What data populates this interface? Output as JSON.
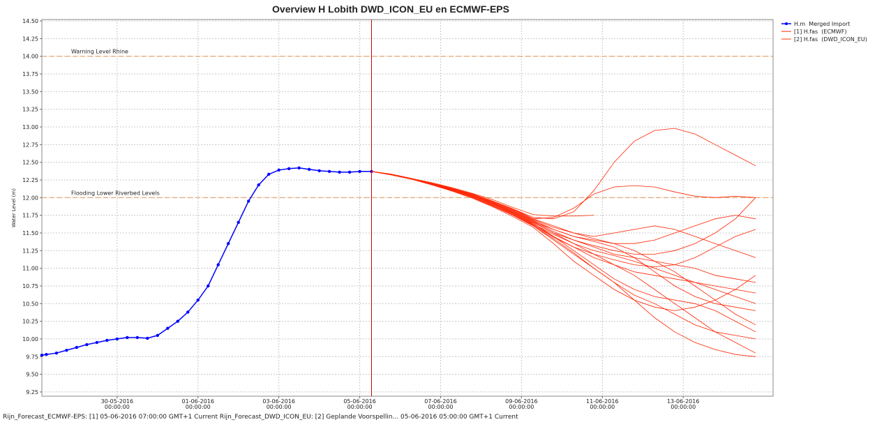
{
  "chart_data": {
    "type": "line",
    "title": "Overview H Lobith DWD_ICON_EU en ECMWF-EPS",
    "y_label": "Water Level (m)",
    "footer": "Rijn_Forecast_ECMWF-EPS: [1] 05-06-2016 07:00:00 GMT+1 Current Rijn_Forecast_DWD_ICON_EU: [2] Geplande Voorspellin... 05-06-2016 05:00:00 GMT+1 Current",
    "grid": true,
    "legend": "top-right",
    "xlim": [
      "2016-05-28T03:20",
      "2016-06-15T05:20"
    ],
    "ylim": [
      9.19,
      14.52
    ],
    "xticks": [
      {
        "value": "2016-05-30T00:00",
        "label": "30-05-2016 00:00:00"
      },
      {
        "value": "2016-06-01T00:00",
        "label": "01-06-2016 00:00:00"
      },
      {
        "value": "2016-06-03T00:00",
        "label": "03-06-2016 00:00:00"
      },
      {
        "value": "2016-06-05T00:00",
        "label": "05-06-2016 00:00:00"
      },
      {
        "value": "2016-06-07T00:00",
        "label": "07-06-2016 00:00:00"
      },
      {
        "value": "2016-06-09T00:00",
        "label": "09-06-2016 00:00:00"
      },
      {
        "value": "2016-06-11T00:00",
        "label": "11-06-2016 00:00:00"
      },
      {
        "value": "2016-06-13T00:00",
        "label": "13-06-2016 00:00:00"
      }
    ],
    "yticks": [
      9.25,
      {
        "value": 9.5,
        "label": "9.50"
      },
      9.75,
      {
        "value": 10,
        "label": "10.00"
      },
      10.25,
      {
        "value": 10.5,
        "label": "10.50"
      },
      10.75,
      {
        "value": 11,
        "label": "11.00"
      },
      11.25,
      {
        "value": 11.5,
        "label": "11.50"
      },
      11.75,
      {
        "value": 12,
        "label": "12.00"
      },
      12.25,
      {
        "value": 12.5,
        "label": "12.50"
      },
      12.75,
      {
        "value": 13,
        "label": "13.00"
      },
      13.25,
      {
        "value": 13.5,
        "label": "13.50"
      },
      13.75,
      {
        "value": 14,
        "label": "14.00"
      },
      14.25,
      {
        "value": 14.5,
        "label": "14.50"
      }
    ],
    "thresholds": [
      {
        "label": "Warning Level Rhine",
        "value": 14
      },
      {
        "label": "Flooding Lower Riverbed Levels",
        "value": 12
      }
    ],
    "threshold_color": "#e8a060",
    "series": [
      {
        "name": "H.m  Merged Import",
        "color": "#0000ff",
        "x": [
          "2016-05-28T03:20",
          "2016-05-28T06:00",
          "2016-05-28T12:00",
          "2016-05-28T18:00",
          "2016-05-29T00:00",
          "2016-05-29T06:00",
          "2016-05-29T12:00",
          "2016-05-29T18:00",
          "2016-05-30T00:00",
          "2016-05-30T06:00",
          "2016-05-30T12:00",
          "2016-05-30T18:00",
          "2016-05-31T00:00",
          "2016-05-31T06:00",
          "2016-05-31T12:00",
          "2016-05-31T18:00",
          "2016-06-01T00:00",
          "2016-06-01T06:00",
          "2016-06-01T12:00",
          "2016-06-01T18:00",
          "2016-06-02T00:00",
          "2016-06-02T06:00",
          "2016-06-02T12:00",
          "2016-06-02T18:00",
          "2016-06-03T00:00",
          "2016-06-03T06:00",
          "2016-06-03T12:00",
          "2016-06-03T18:00",
          "2016-06-04T00:00",
          "2016-06-04T06:00",
          "2016-06-04T12:00",
          "2016-06-04T18:00",
          "2016-06-05T00:00",
          "2016-06-05T07:00"
        ],
        "values": [
          9.77,
          9.78,
          9.8,
          9.84,
          9.88,
          9.92,
          9.95,
          9.98,
          10.0,
          10.02,
          10.02,
          10.01,
          10.05,
          10.15,
          10.25,
          10.38,
          10.55,
          10.75,
          11.05,
          11.35,
          11.65,
          11.95,
          12.18,
          12.33,
          12.39,
          12.41,
          12.42,
          12.4,
          12.38,
          12.37,
          12.36,
          12.36,
          12.37,
          12.37
        ]
      },
      {
        "name": "[1] H.fas  (ECMWF)",
        "color": "#ff2200",
        "x": [
          "2016-06-05T07:00",
          "2016-06-05T19:00",
          "2016-06-06T07:00",
          "2016-06-06T19:00",
          "2016-06-07T07:00",
          "2016-06-07T19:00",
          "2016-06-08T07:00",
          "2016-06-08T19:00",
          "2016-06-09T07:00",
          "2016-06-09T19:00",
          "2016-06-10T07:00",
          "2016-06-10T19:00",
          "2016-06-11T07:00",
          "2016-06-11T19:00",
          "2016-06-12T07:00",
          "2016-06-12T19:00",
          "2016-06-13T07:00",
          "2016-06-13T19:00",
          "2016-06-14T07:00",
          "2016-06-14T19:00"
        ],
        "members": [
          [
            12.37,
            12.33,
            12.27,
            12.2,
            12.13,
            12.05,
            11.95,
            11.84,
            11.72,
            11.7,
            11.8,
            12.1,
            12.5,
            12.8,
            12.95,
            12.98,
            12.9,
            12.75,
            12.6,
            12.45
          ],
          [
            12.37,
            12.33,
            12.27,
            12.2,
            12.13,
            12.05,
            11.95,
            11.84,
            11.7,
            11.72,
            11.85,
            12.05,
            12.15,
            12.17,
            12.15,
            12.08,
            12.02,
            12.0,
            12.02,
            12.0
          ],
          [
            12.37,
            12.33,
            12.26,
            12.19,
            12.11,
            12.02,
            11.91,
            11.79,
            11.65,
            11.5,
            11.35,
            11.2,
            11.05,
            10.9,
            10.7,
            10.5,
            10.3,
            10.1,
            9.95,
            9.8
          ],
          [
            12.37,
            12.32,
            12.26,
            12.18,
            12.1,
            12.0,
            11.88,
            11.75,
            11.6,
            11.4,
            11.2,
            11.0,
            10.8,
            10.55,
            10.3,
            10.1,
            9.95,
            9.85,
            9.78,
            9.75
          ],
          [
            12.37,
            12.33,
            12.27,
            12.2,
            12.12,
            12.04,
            11.93,
            11.81,
            11.68,
            11.55,
            11.45,
            11.4,
            11.35,
            11.35,
            11.4,
            11.5,
            11.6,
            11.7,
            11.75,
            11.7
          ],
          [
            12.37,
            12.33,
            12.26,
            12.19,
            12.11,
            12.02,
            11.9,
            11.77,
            11.62,
            11.45,
            11.3,
            11.15,
            11.05,
            10.95,
            10.9,
            10.85,
            10.8,
            10.7,
            10.6,
            10.5
          ],
          [
            12.37,
            12.33,
            12.27,
            12.2,
            12.12,
            12.03,
            11.92,
            11.8,
            11.66,
            11.5,
            11.4,
            11.3,
            11.2,
            11.15,
            11.1,
            11.05,
            11.0,
            10.9,
            10.85,
            10.8
          ],
          [
            12.37,
            12.32,
            12.26,
            12.18,
            12.09,
            11.99,
            11.87,
            11.73,
            11.58,
            11.35,
            11.1,
            10.9,
            10.7,
            10.55,
            10.45,
            10.4,
            10.45,
            10.55,
            10.7,
            10.9
          ],
          [
            12.37,
            12.33,
            12.27,
            12.2,
            12.13,
            12.05,
            11.95,
            11.83,
            11.7,
            11.6,
            11.5,
            11.45,
            11.5,
            11.55,
            11.6,
            11.55,
            11.45,
            11.35,
            11.25,
            11.15
          ],
          [
            12.37,
            12.33,
            12.26,
            12.19,
            12.11,
            12.02,
            11.91,
            11.78,
            11.64,
            11.45,
            11.25,
            11.05,
            10.85,
            10.7,
            10.6,
            10.55,
            10.5,
            10.4,
            10.25,
            10.1
          ],
          [
            12.37,
            12.32,
            12.26,
            12.18,
            12.1,
            12.0,
            11.89,
            11.75,
            11.6,
            11.42,
            11.22,
            11.0,
            10.8,
            10.62,
            10.5,
            10.35,
            10.2,
            10.1,
            10.05,
            10.0
          ],
          [
            12.37,
            12.33,
            12.27,
            12.2,
            12.12,
            12.04,
            11.93,
            11.81,
            11.67,
            11.52,
            11.4,
            11.32,
            11.25,
            11.2,
            11.2,
            11.25,
            11.35,
            11.5,
            11.7,
            12.0
          ],
          [
            12.37,
            12.33,
            12.26,
            12.19,
            12.11,
            12.02,
            11.91,
            11.78,
            11.63,
            11.48,
            11.35,
            11.25,
            11.18,
            11.1,
            11.0,
            10.9,
            10.8,
            10.75,
            10.7,
            10.65
          ],
          [
            12.37,
            12.33,
            12.27,
            12.2,
            12.13,
            12.05,
            11.94,
            11.82,
            11.69,
            11.58,
            11.5,
            11.42,
            11.35,
            11.25,
            11.1,
            10.95,
            10.75,
            10.55,
            10.35,
            10.2
          ],
          [
            12.37,
            12.32,
            12.26,
            12.19,
            12.1,
            12.01,
            11.89,
            11.76,
            11.61,
            11.44,
            11.3,
            11.2,
            11.12,
            11.05,
            11.02,
            11.05,
            11.15,
            11.3,
            11.45,
            11.55
          ],
          [
            12.37,
            12.33,
            12.27,
            12.2,
            12.12,
            12.03,
            11.92,
            11.8,
            11.66,
            11.55,
            11.45,
            11.38,
            11.3,
            11.15,
            10.95,
            10.75,
            10.6,
            10.5,
            10.45,
            10.4
          ]
        ]
      },
      {
        "name": "[2] H.fas  (DWD_ICON_EU)",
        "color": "#ff3300",
        "x": [
          "2016-06-05T07:00",
          "2016-06-05T19:00",
          "2016-06-06T07:00",
          "2016-06-06T19:00",
          "2016-06-07T07:00",
          "2016-06-07T19:00",
          "2016-06-08T07:00",
          "2016-06-08T19:00",
          "2016-06-09T07:00",
          "2016-06-09T19:00",
          "2016-06-10T07:00",
          "2016-06-10T19:00"
        ],
        "members": [
          [
            12.37,
            12.33,
            12.27,
            12.21,
            12.14,
            12.06,
            11.97,
            11.86,
            11.76,
            11.74,
            11.74,
            11.75
          ]
        ]
      }
    ]
  }
}
